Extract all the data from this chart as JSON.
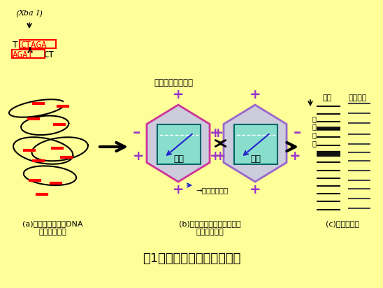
{
  "bg_color": "#FFFF99",
  "title": "図1　ＰＦＧＥ解析の模式図",
  "title_fontsize": 13,
  "xba_label": "(XbaI)",
  "label_a": "(a)制限酵素によるDNA\n　塩基の切断",
  "label_b": "(b)パルスフィールド・ゲル\n　　電気泳動",
  "label_c": "(c)染色・撮影",
  "gel_text": "ゲル",
  "current_label": "電流の切り替わり",
  "current_dir": "→：電流の方向",
  "migration_label": "泳\n動\n方\n向",
  "kenntai": "検体",
  "marker": "マーカー",
  "hex_fill": "#CCCCDD",
  "hex_edge_left": "#CC3399",
  "hex_edge_right": "#9966CC",
  "gel_fill": "#88DDCC",
  "gel_edge": "#006666",
  "plus_color": "#9933CC",
  "arrow_color": "#000000",
  "red_color": "#FF0000",
  "blue_arrow_color": "#2222CC",
  "dna_color": "#000000",
  "seq_red": "#FF0000",
  "band_color_dark": "#111111",
  "band_color_mid": "#444444",
  "seq_T_color": "#CC0000",
  "seq_normal_color": "#000000"
}
